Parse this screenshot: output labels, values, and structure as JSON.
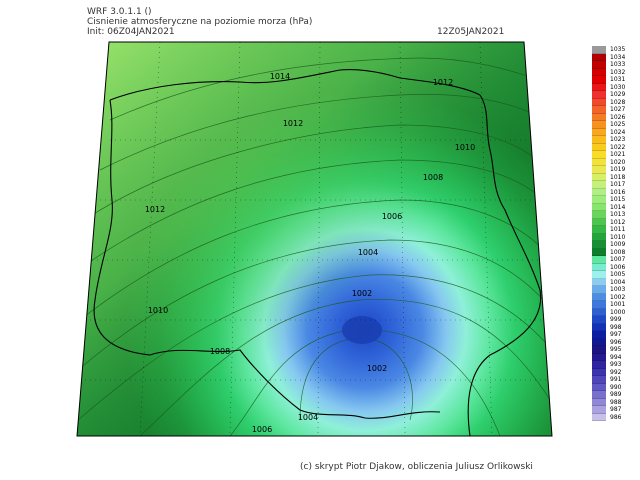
{
  "header": {
    "model": "WRF 3.0.1.1 ()",
    "variable": "Cisnienie atmosferyczne na poziomie morza (hPa)",
    "init": "Init: 06Z04JAN2021",
    "valid": "12Z05JAN2021"
  },
  "map": {
    "background_colors": {
      "light": "#a4ea6e",
      "mid": "#2bab44",
      "dark": "#157a2a",
      "low": "#3a7fe0",
      "lowest": "#2148b8"
    },
    "isobar_labels": [
      "1014",
      "1012",
      "1012",
      "1012",
      "1010",
      "1008",
      "1006",
      "1004",
      "1002",
      "1002",
      "1010",
      "1008",
      "1004",
      "1006"
    ]
  },
  "colorbar": {
    "levels": [
      "1035",
      "1034",
      "1033",
      "1032",
      "1031",
      "1030",
      "1029",
      "1028",
      "1027",
      "1026",
      "1025",
      "1024",
      "1023",
      "1022",
      "1021",
      "1020",
      "1019",
      "1018",
      "1017",
      "1016",
      "1015",
      "1014",
      "1013",
      "1012",
      "1011",
      "1010",
      "1009",
      "1008",
      "1007",
      "1006",
      "1005",
      "1004",
      "1003",
      "1002",
      "1001",
      "1000",
      "999",
      "998",
      "997",
      "996",
      "995",
      "994",
      "993",
      "992",
      "991",
      "990",
      "989",
      "988",
      "987",
      "986"
    ],
    "colors": [
      "#9a9a9a",
      "#b00000",
      "#c00000",
      "#d40000",
      "#e00000",
      "#e81818",
      "#ee3030",
      "#f04a2a",
      "#f26428",
      "#f47c24",
      "#f69220",
      "#f8a81e",
      "#f8bc1c",
      "#f8cc1c",
      "#f8dc2a",
      "#f2e23c",
      "#e8e850",
      "#d6ef66",
      "#c4f07e",
      "#aeef86",
      "#9ced7a",
      "#88e66c",
      "#6ad55c",
      "#4cc64e",
      "#36b846",
      "#23a43c",
      "#169032",
      "#0e7e2c",
      "#5ee7a0",
      "#78ecd0",
      "#9ef0ee",
      "#8ecbf2",
      "#6aabea",
      "#4e8ee2",
      "#3e78dc",
      "#2e60d2",
      "#1e48c6",
      "#1232b8",
      "#0a20a4",
      "#121890",
      "#1c1480",
      "#241a90",
      "#3024a0",
      "#3c34ae",
      "#5046ba",
      "#6258c4",
      "#7870cc",
      "#9088d6",
      "#aaa2de",
      "#c6c0ea"
    ]
  },
  "credit": "(c) skrypt Piotr Djakow, obliczenia Juliusz Orlikowski"
}
